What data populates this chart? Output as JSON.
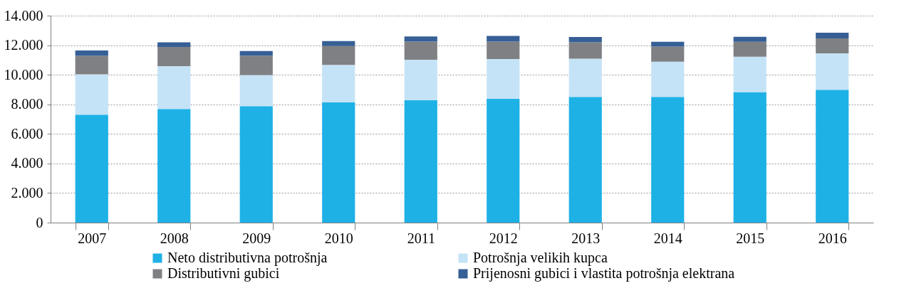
{
  "chart_data": {
    "type": "bar",
    "stacked": true,
    "categories": [
      "2007",
      "2008",
      "2009",
      "2010",
      "2011",
      "2012",
      "2013",
      "2014",
      "2015",
      "2016"
    ],
    "series": [
      {
        "name": "Neto distributivna potrošnja",
        "color": "#1eb1e6",
        "values": [
          7300,
          7680,
          7880,
          8130,
          8280,
          8370,
          8500,
          8500,
          8830,
          8990
        ]
      },
      {
        "name": "Potrošnja velikih kupca",
        "color": "#c5e3f6",
        "values": [
          2730,
          2910,
          2100,
          2540,
          2740,
          2690,
          2590,
          2380,
          2390,
          2460
        ]
      },
      {
        "name": "Distributivni gubici",
        "color": "#7f8083",
        "values": [
          1250,
          1290,
          1310,
          1270,
          1220,
          1180,
          1110,
          1030,
          1010,
          1010
        ]
      },
      {
        "name": "Prijenosni gubici i vlastita potrošnja elektrana",
        "color": "#365f96",
        "values": [
          360,
          320,
          320,
          340,
          350,
          390,
          360,
          320,
          340,
          380
        ]
      }
    ],
    "ylim": [
      0,
      14000
    ],
    "yticks": [
      0,
      {
        "value": 2000,
        "label": "2.000"
      },
      {
        "value": 4000,
        "label": "4.000"
      },
      {
        "value": 6000,
        "label": "6.000"
      },
      {
        "value": 8000,
        "label": "8.000"
      },
      {
        "value": 10000,
        "label": "10.000"
      },
      {
        "value": 12000,
        "label": "12.000"
      },
      {
        "value": 14000,
        "label": "14.000"
      }
    ],
    "grid": "y",
    "legend": "bottom"
  }
}
